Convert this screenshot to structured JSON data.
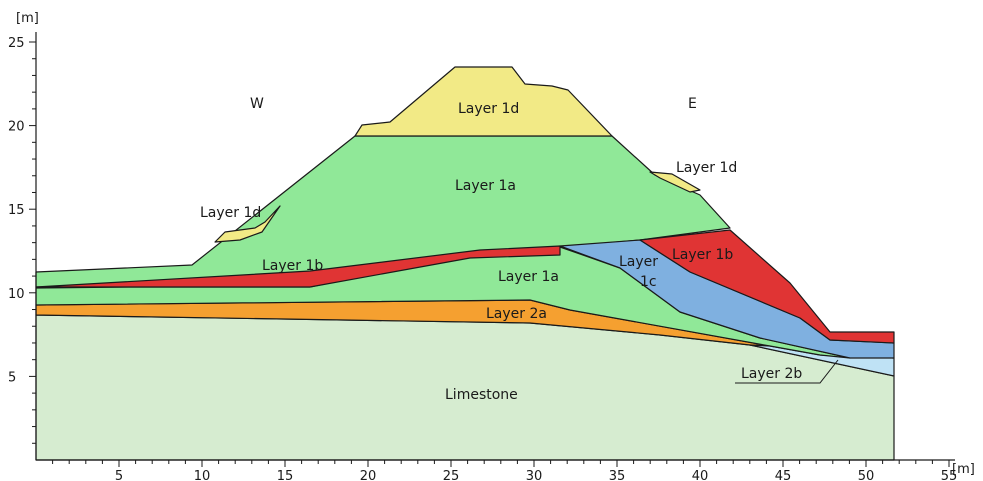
{
  "axes": {
    "y_unit": "[m]",
    "x_unit": "[m]",
    "y_ticks": [
      "5",
      "10",
      "15",
      "20",
      "25"
    ],
    "x_ticks": [
      "5",
      "10",
      "15",
      "20",
      "25",
      "30",
      "35",
      "40",
      "45",
      "50",
      "55"
    ]
  },
  "directions": {
    "west": "W",
    "east": "E"
  },
  "labels": {
    "layer_1d_top": "Layer 1d",
    "layer_1d_east": "Layer 1d",
    "layer_1d_west": "Layer 1d",
    "layer_1a_upper": "Layer 1a",
    "layer_1a_lower": "Layer 1a",
    "layer_1b_west": "Layer 1b",
    "layer_1b_east": "Layer 1b",
    "layer_1c_line1": "Layer",
    "layer_1c_line2": "1c",
    "layer_2a": "Layer 2a",
    "layer_2b": "Layer 2b",
    "limestone": "Limestone"
  },
  "colors": {
    "layer_1d": "#f2ea86",
    "layer_1a": "#90e898",
    "layer_1b": "#e03434",
    "layer_1c": "#7fb0e0",
    "layer_2a": "#f5a030",
    "layer_2b": "#bfe2f5",
    "limestone": "#d6ecd0"
  }
}
